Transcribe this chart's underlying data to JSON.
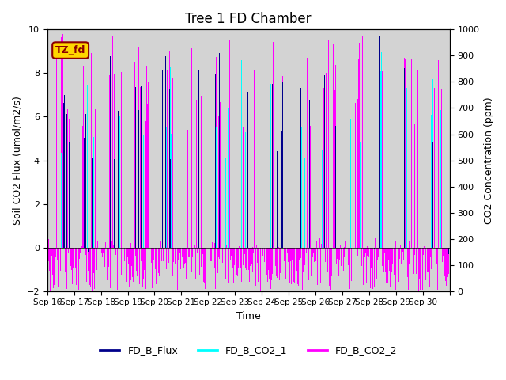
{
  "title": "Tree 1 FD Chamber",
  "xlabel": "Time",
  "ylabel_left": "Soil CO2 Flux (umol/m2/s)",
  "ylabel_right": "CO2 Concentration (ppm)",
  "ylim_left": [
    -2,
    10
  ],
  "ylim_right": [
    0,
    1000
  ],
  "yticks_left": [
    -2,
    0,
    2,
    4,
    6,
    8,
    10
  ],
  "yticks_right": [
    0,
    100,
    200,
    300,
    400,
    500,
    600,
    700,
    800,
    900,
    1000
  ],
  "xtick_positions": [
    0,
    1,
    2,
    3,
    4,
    5,
    6,
    7,
    8,
    9,
    10,
    11,
    12,
    13,
    14,
    15
  ],
  "xtick_labels": [
    "Sep 16",
    "Sep 17",
    "Sep 18",
    "Sep 19",
    "Sep 20",
    "Sep 21",
    "Sep 22",
    "Sep 23",
    "Sep 24",
    "Sep 25",
    "Sep 26",
    "Sep 27",
    "Sep 28",
    "Sep 29",
    "Sep 30",
    ""
  ],
  "color_flux": "#00008B",
  "color_co2_1": "#00FFFF",
  "color_co2_2": "#FF00FF",
  "legend_labels": [
    "FD_B_Flux",
    "FD_B_CO2_1",
    "FD_B_CO2_2"
  ],
  "annotation_text": "TZ_fd",
  "annotation_color": "#8B0000",
  "annotation_bg": "#FFD700",
  "background_color": "#D3D3D3",
  "n_days": 15,
  "n_per_day": 48,
  "seed": 42
}
